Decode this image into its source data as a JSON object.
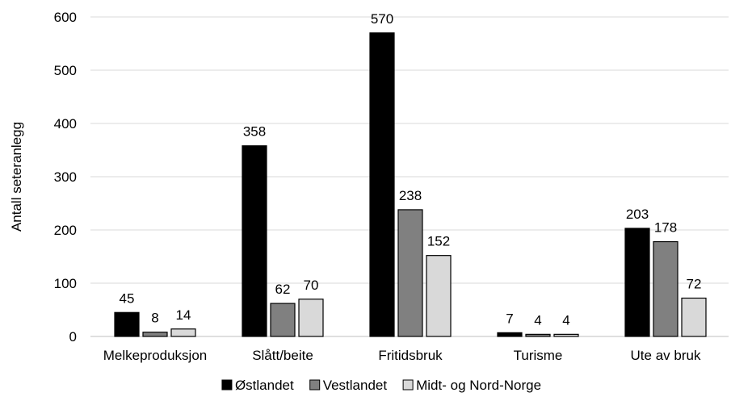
{
  "chart_data": {
    "type": "bar",
    "title": "",
    "xlabel": "",
    "ylabel": "Antall seteranlegg",
    "ylim": [
      0,
      600
    ],
    "yticks": [
      0,
      100,
      200,
      300,
      400,
      500,
      600
    ],
    "grid": true,
    "legend_position": "bottom",
    "categories": [
      "Melkeproduksjon",
      "Slått/beite",
      "Fritidsbruk",
      "Turisme",
      "Ute av bruk"
    ],
    "series": [
      {
        "name": "Østlandet",
        "values": [
          45,
          358,
          570,
          7,
          203
        ],
        "color": "#000000"
      },
      {
        "name": "Vestlandet",
        "values": [
          8,
          62,
          238,
          4,
          178
        ],
        "color": "#808080"
      },
      {
        "name": "Midt- og Nord-Norge",
        "values": [
          14,
          70,
          152,
          4,
          72
        ],
        "color": "#d9d9d9"
      }
    ],
    "gridline_color": "#d9d9d9"
  }
}
